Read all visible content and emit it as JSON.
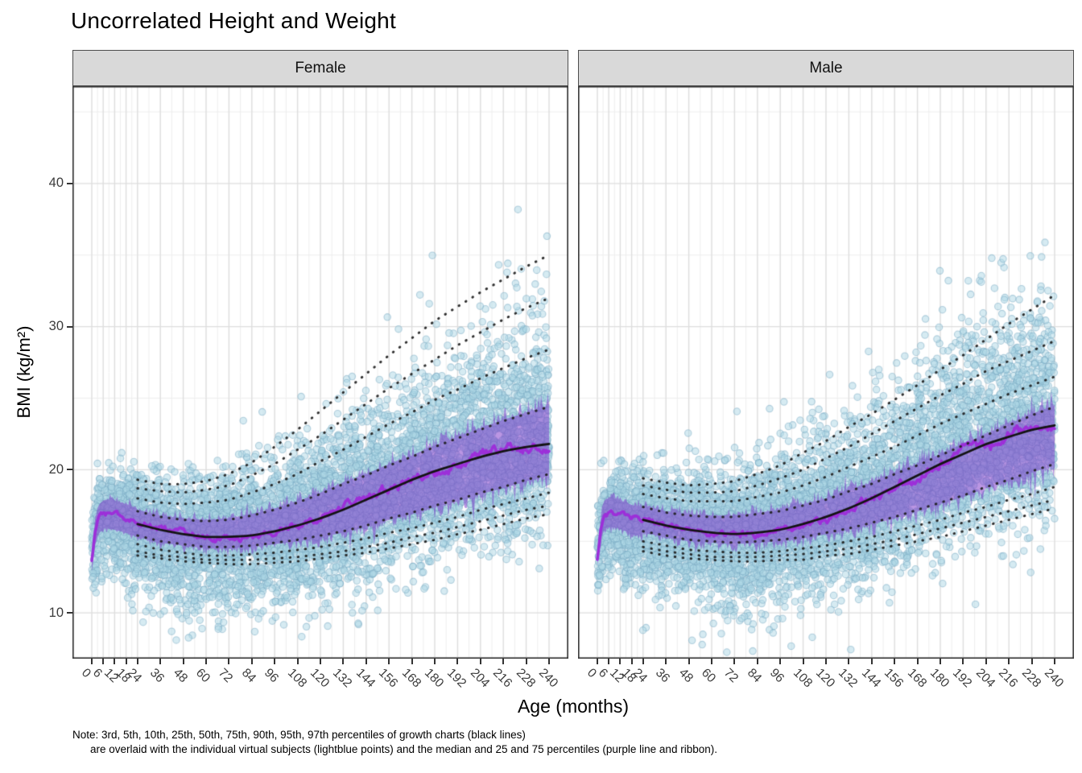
{
  "chart": {
    "title": "Uncorrelated Height and Weight",
    "x_axis": {
      "title": "Age (months)",
      "ticks": [
        0,
        6,
        12,
        18,
        24,
        36,
        48,
        60,
        72,
        84,
        96,
        108,
        120,
        132,
        144,
        156,
        168,
        180,
        192,
        204,
        216,
        228,
        240
      ],
      "minor_gridlines": [
        3,
        9,
        15,
        21,
        30,
        42,
        54,
        66,
        78,
        90,
        102,
        114,
        126,
        138,
        150,
        162,
        174,
        186,
        198,
        210,
        222,
        234
      ],
      "range": [
        0,
        240
      ]
    },
    "y_axis": {
      "title": "BMI (kg/m²)",
      "ticks": [
        10,
        20,
        30,
        40
      ],
      "minor_gridlines": [
        15,
        25,
        35,
        45
      ],
      "range": [
        6.8,
        46.8
      ]
    },
    "note_lines": [
      "Note: 3rd, 5th, 10th, 25th, 50th, 75th, 90th, 95th, 97th percentiles of growth charts (black lines)",
      "are overlaid with the individual virtual subjects (lightblue points) and the median and 25 and 75 percentiles (purple line and ribbon)."
    ],
    "colors": {
      "point_fill": "rgba(173,216,230,0.5)",
      "point_stroke": "rgba(120,170,195,0.5)",
      "ribbon_fill": "rgba(124,53,202,0.52)",
      "median_line": "#9C2FD9",
      "growth_line": "#141414",
      "dotted_line": "rgba(30,30,30,0.92)",
      "strip_bg": "#D9D9D9",
      "grid_major": "#DEDEDE",
      "grid_minor": "#EEEEEE",
      "panel_border": "#333333",
      "tick_label": "#3c3c3c"
    }
  },
  "chart_data": {
    "type": "scatter",
    "description": "Faceted simulation plot: individual virtual subjects (lightblue points), median and 25/75 percentiles of subjects (purple line and ribbon), and growth-chart percentile curves (black solid 50th, black dotted 3/5/10/25/75/90/95/97) of BMI vs age.",
    "xlabel": "Age (months)",
    "ylabel": "BMI (kg/m²)",
    "xlim": [
      0,
      240
    ],
    "ylim": [
      6.8,
      46.8
    ],
    "percentile_labels": [
      3,
      5,
      10,
      25,
      50,
      75,
      90,
      95,
      97
    ],
    "facets": [
      {
        "label": "Female",
        "infant_median": {
          "ages": [
            0,
            1,
            2,
            3,
            4,
            6,
            8,
            10,
            12,
            15,
            18,
            21,
            24
          ],
          "values": [
            13.6,
            14.8,
            15.8,
            16.3,
            16.6,
            16.85,
            16.9,
            16.85,
            16.8,
            16.7,
            16.6,
            16.45,
            16.3
          ]
        },
        "growth_percentiles": {
          "ages": [
            24,
            36,
            48,
            60,
            72,
            84,
            96,
            108,
            120,
            132,
            144,
            156,
            168,
            180,
            192,
            204,
            216,
            228,
            240
          ],
          "p3": [
            14.0,
            13.8,
            13.6,
            13.5,
            13.4,
            13.4,
            13.5,
            13.6,
            13.8,
            14.0,
            14.2,
            14.5,
            14.8,
            15.1,
            15.5,
            15.8,
            16.2,
            16.6,
            16.9
          ],
          "p5": [
            14.3,
            14.0,
            13.9,
            13.7,
            13.7,
            13.7,
            13.8,
            13.9,
            14.1,
            14.3,
            14.6,
            14.9,
            15.3,
            15.6,
            16.0,
            16.4,
            16.8,
            17.2,
            17.5
          ],
          "p10": [
            14.8,
            14.4,
            14.2,
            14.0,
            14.0,
            14.1,
            14.2,
            14.4,
            14.6,
            14.9,
            15.2,
            15.6,
            15.9,
            16.3,
            16.7,
            17.2,
            17.6,
            18.0,
            18.4
          ],
          "p25": [
            15.4,
            15.0,
            14.8,
            14.6,
            14.6,
            14.7,
            14.9,
            15.1,
            15.4,
            15.7,
            16.1,
            16.6,
            17.0,
            17.5,
            17.9,
            18.4,
            18.8,
            19.3,
            19.7
          ],
          "p50": [
            16.2,
            15.8,
            15.5,
            15.3,
            15.3,
            15.4,
            15.7,
            16.1,
            16.6,
            17.2,
            17.9,
            18.6,
            19.3,
            19.9,
            20.4,
            20.9,
            21.3,
            21.6,
            21.8
          ],
          "p75": [
            17.1,
            16.7,
            16.5,
            16.4,
            16.5,
            16.8,
            17.2,
            17.7,
            18.3,
            19.0,
            19.6,
            20.3,
            20.9,
            21.6,
            22.2,
            22.8,
            23.4,
            23.9,
            24.4
          ],
          "p90": [
            18.0,
            17.7,
            17.6,
            17.7,
            17.9,
            18.4,
            19.0,
            19.7,
            20.6,
            21.4,
            22.3,
            23.2,
            24.0,
            24.9,
            25.6,
            26.4,
            27.1,
            27.8,
            28.4
          ],
          "p95": [
            18.7,
            18.5,
            18.4,
            18.6,
            18.9,
            19.6,
            20.4,
            21.4,
            22.4,
            23.5,
            24.6,
            25.7,
            26.7,
            27.7,
            28.7,
            29.6,
            30.5,
            31.3,
            32.0
          ],
          "p97": [
            19.3,
            19.0,
            19.0,
            19.2,
            19.7,
            20.5,
            21.6,
            22.8,
            24.1,
            25.4,
            26.7,
            28.0,
            29.2,
            30.4,
            31.4,
            32.4,
            33.3,
            34.2,
            35.0
          ]
        }
      },
      {
        "label": "Male",
        "infant_median": {
          "ages": [
            0,
            1,
            2,
            3,
            4,
            6,
            8,
            10,
            12,
            15,
            18,
            21,
            24
          ],
          "values": [
            13.8,
            15.0,
            16.0,
            16.6,
            16.9,
            17.0,
            17.0,
            16.95,
            16.85,
            16.7,
            16.55,
            16.45,
            16.4
          ]
        },
        "growth_percentiles": {
          "ages": [
            24,
            36,
            48,
            60,
            72,
            84,
            96,
            108,
            120,
            132,
            144,
            156,
            168,
            180,
            192,
            204,
            216,
            228,
            240
          ],
          "p3": [
            14.3,
            14.0,
            13.8,
            13.7,
            13.6,
            13.6,
            13.7,
            13.7,
            14.0,
            14.1,
            14.4,
            14.7,
            15.0,
            15.3,
            15.7,
            16.1,
            16.5,
            16.9,
            17.3
          ],
          "p5": [
            14.6,
            14.3,
            14.1,
            13.9,
            13.9,
            13.9,
            14.0,
            14.1,
            14.3,
            14.5,
            14.8,
            15.1,
            15.5,
            15.9,
            16.3,
            16.7,
            17.1,
            17.5,
            17.9
          ],
          "p10": [
            15.0,
            14.7,
            14.4,
            14.3,
            14.2,
            14.2,
            14.3,
            14.5,
            14.7,
            15.0,
            15.3,
            15.7,
            16.1,
            16.5,
            17.0,
            17.4,
            17.9,
            18.3,
            18.8
          ],
          "p25": [
            15.7,
            15.4,
            15.1,
            15.0,
            14.9,
            15.0,
            15.1,
            15.3,
            15.6,
            15.9,
            16.3,
            16.7,
            17.2,
            17.7,
            18.2,
            18.8,
            19.3,
            19.9,
            20.4
          ],
          "p50": [
            16.5,
            16.1,
            15.8,
            15.6,
            15.5,
            15.6,
            15.8,
            16.2,
            16.7,
            17.3,
            18.0,
            18.8,
            19.6,
            20.4,
            21.1,
            21.8,
            22.3,
            22.8,
            23.1
          ],
          "p75": [
            17.4,
            17.0,
            16.8,
            16.7,
            16.7,
            16.9,
            17.1,
            17.5,
            17.9,
            18.5,
            19.0,
            19.7,
            20.3,
            21.0,
            21.7,
            22.4,
            23.1,
            23.8,
            24.4
          ],
          "p90": [
            18.3,
            18.0,
            17.8,
            17.8,
            17.8,
            18.1,
            18.4,
            18.9,
            19.5,
            20.2,
            20.9,
            21.6,
            22.4,
            23.2,
            23.9,
            24.6,
            25.3,
            25.9,
            26.5
          ],
          "p95": [
            18.9,
            18.6,
            18.4,
            18.4,
            18.5,
            18.9,
            19.4,
            20.0,
            20.8,
            21.6,
            22.5,
            23.4,
            24.3,
            25.2,
            26.0,
            26.9,
            27.6,
            28.3,
            29.0
          ],
          "p97": [
            19.4,
            19.1,
            18.9,
            19.0,
            19.2,
            19.7,
            20.3,
            21.2,
            22.0,
            23.0,
            23.9,
            24.9,
            25.9,
            27.0,
            28.0,
            29.1,
            30.2,
            31.2,
            32.2
          ]
        }
      }
    ],
    "legend_mapping": {
      "lightblue_points": "individual virtual subjects",
      "purple_line_ribbon": "median and 25 and 75 percentiles of virtual subjects",
      "black_solid_line": "50th percentile of growth charts (from 24 months)",
      "black_dotted_lines": "3rd, 5th, 10th, 25th, 75th, 90th, 95th, 97th percentiles of growth charts"
    }
  }
}
